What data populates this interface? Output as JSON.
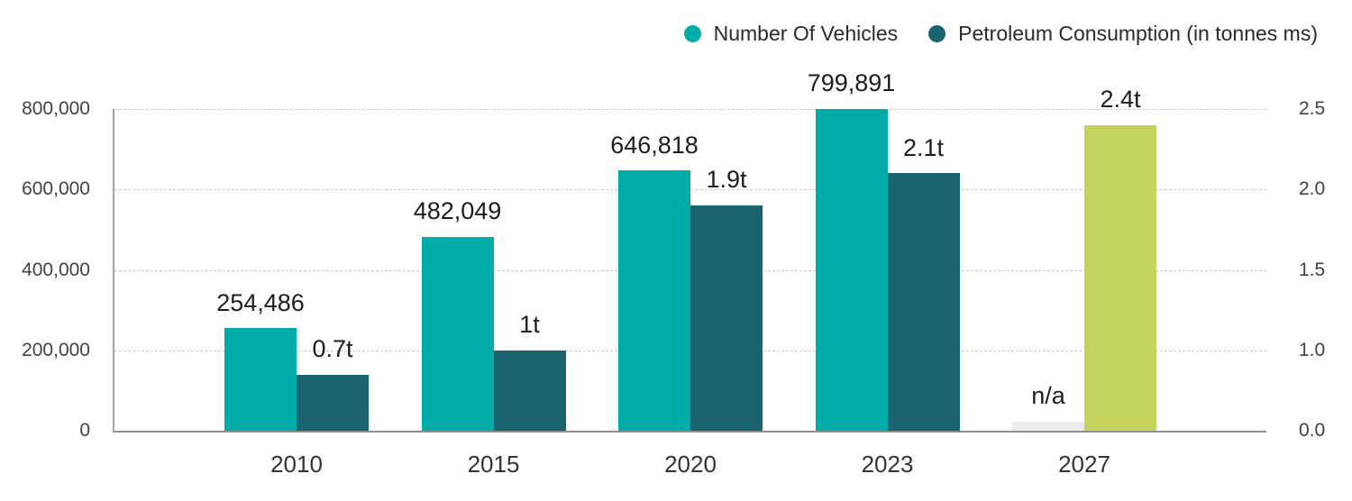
{
  "legend": {
    "position": "top-right",
    "items": [
      {
        "label": "Number Of Vehicles",
        "color": "#00ACA8"
      },
      {
        "label": "Petroleum Consumption (in tonnes ms)",
        "color": "#1A6470"
      }
    ]
  },
  "chart_data": {
    "type": "bar",
    "title": "",
    "categories": [
      "2010",
      "2015",
      "2020",
      "2023",
      "2027"
    ],
    "series": [
      {
        "name": "Number Of Vehicles",
        "axis": "left",
        "color": "#00ACA8",
        "values": [
          254486,
          482049,
          646818,
          799891,
          null
        ],
        "value_labels": [
          "254,486",
          "482,049",
          "646,818",
          "799,891",
          "n/a"
        ],
        "na_bar_color": "#ECECEC"
      },
      {
        "name": "Petroleum Consumption (in tonnes ms)",
        "axis": "right",
        "color": "#1A6470",
        "values": [
          0.7,
          1.0,
          1.9,
          2.1,
          2.4
        ],
        "value_labels": [
          "0.7t",
          "1t",
          "1.9t",
          "2.1t",
          "2.4t"
        ],
        "bar_colors": [
          null,
          null,
          null,
          null,
          "#C5D35C"
        ]
      }
    ],
    "left_axis": {
      "tick_labels": [
        "800,000",
        "600,000",
        "400,000",
        "200,000",
        "0"
      ],
      "tick_values": [
        800000,
        600000,
        400000,
        200000,
        0
      ],
      "max": 800000
    },
    "right_axis": {
      "tick_labels": [
        "2.5",
        "2.0",
        "1.5",
        "1.0",
        "0.0"
      ],
      "tick_values": [
        2.5,
        2.0,
        1.5,
        1.0,
        0.0
      ]
    },
    "grid": {
      "horizontal": true,
      "style": "dashed"
    },
    "colors": {
      "grid": "#c8c8c8",
      "axis": "#8f8f8f",
      "value_label_text": "#1d1d1d",
      "tick_text": "#414141",
      "category_text": "#333333"
    }
  }
}
